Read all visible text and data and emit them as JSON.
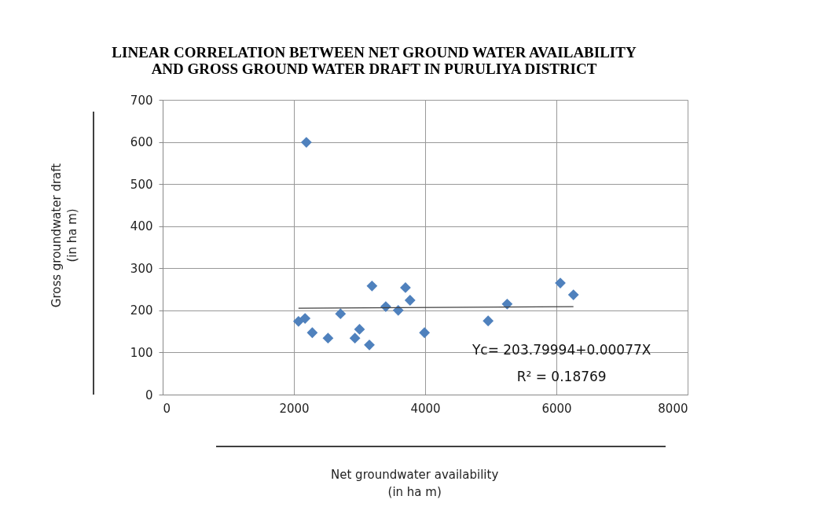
{
  "chart_data": {
    "type": "scatter",
    "title": "LINEAR CORRELATION  BETWEEN NET GROUND WATER AVAILABILITY\nAND GROSS GROUND WATER DRAFT IN PURULIYA DISTRICT",
    "xlabel": "Net groundwater availability\n(in ha m)",
    "ylabel": "Gross  groundwater draft\n(in ha m)",
    "xlim": [
      0,
      8000
    ],
    "xticks": [
      0,
      {
        "value": 2000,
        "label": "2000"
      },
      {
        "value": 4000,
        "label": "4000"
      },
      {
        "value": 6000,
        "label": "6000"
      },
      {
        "value": 8000,
        "label": "8000"
      }
    ],
    "ylim": [
      0,
      700
    ],
    "yticks": [
      0,
      100,
      200,
      300,
      400,
      500,
      600,
      700
    ],
    "grid": true,
    "marker": "diamond",
    "series": [
      {
        "color": "#4f81bd",
        "x": [
          2070,
          2170,
          2190,
          2280,
          2520,
          2710,
          2930,
          3000,
          3150,
          3190,
          3400,
          3590,
          3700,
          3770,
          3990,
          4960,
          5250,
          6060,
          6260
        ],
        "values": [
          174,
          181,
          599,
          147,
          134,
          192,
          134,
          155,
          118,
          258,
          209,
          200,
          254,
          224,
          147,
          175,
          215,
          265,
          237
        ]
      },
      {
        "type": "line",
        "marker": "none",
        "line_style": "solid",
        "color": "#404040",
        "x": [
          2070,
          6260
        ],
        "values": [
          205,
          209
        ]
      }
    ],
    "annotations": [
      "Yc= 203.79994+0.00077X",
      "R² = 0.18769"
    ]
  }
}
